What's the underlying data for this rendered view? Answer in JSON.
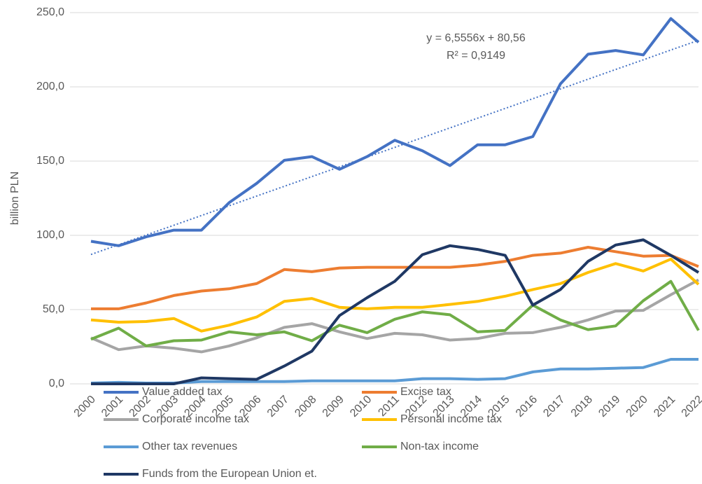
{
  "chart_data": {
    "type": "line",
    "y_label": "billion PLN",
    "categories": [
      "2000",
      "2001",
      "2002",
      "2003",
      "2004",
      "2005",
      "2006",
      "2007",
      "2008",
      "2009",
      "2010",
      "2011",
      "2012",
      "2013",
      "2014",
      "2015",
      "2016",
      "2017",
      "2018",
      "2019",
      "2020",
      "2021",
      "2022"
    ],
    "ylim": [
      0,
      250
    ],
    "yticks": [
      {
        "value": 0,
        "label": "0,0"
      },
      {
        "value": 50,
        "label": "50,0"
      },
      {
        "value": 100,
        "label": "100,0"
      },
      {
        "value": 150,
        "label": "150,0"
      },
      {
        "value": 200,
        "label": "200,0"
      },
      {
        "value": 250,
        "label": "250,0"
      }
    ],
    "grid": true,
    "legend": "bottom",
    "series": [
      {
        "name": "Value added tax",
        "color": "#4472c4",
        "values": [
          96,
          93,
          99,
          103.5,
          103.5,
          122,
          135,
          150.5,
          153,
          144.5,
          153,
          164,
          157,
          147,
          161,
          161,
          166.5,
          202,
          222,
          224.5,
          221.5,
          246,
          230
        ]
      },
      {
        "name": "Excise tax",
        "color": "#ed7d31",
        "values": [
          50.5,
          50.5,
          54.5,
          59.5,
          62.5,
          64,
          67.5,
          77,
          75.5,
          78,
          78.5,
          78.5,
          78.5,
          78.5,
          80,
          82.5,
          86.5,
          88,
          92,
          89,
          86,
          86.5,
          79
        ]
      },
      {
        "name": "Corporate income tax",
        "color": "#a5a5a5",
        "values": [
          31,
          23,
          25.5,
          24,
          21.5,
          25.5,
          31,
          38,
          40.5,
          35,
          30.5,
          34,
          33,
          29.5,
          30.5,
          34,
          34.5,
          38,
          43,
          49,
          49.5,
          60,
          70
        ]
      },
      {
        "name": "Personal income tax",
        "color": "#ffc000",
        "values": [
          43,
          41.5,
          42,
          44,
          35.5,
          39.5,
          45,
          55.5,
          57.5,
          51.5,
          50.5,
          51.5,
          51.5,
          53.5,
          55.5,
          59,
          63.5,
          67.5,
          75,
          81,
          76,
          84,
          67
        ]
      },
      {
        "name": "Other tax revenues",
        "color": "#5b9bd5",
        "values": [
          0.5,
          1,
          0.5,
          0.5,
          1.5,
          1.5,
          1.5,
          1.5,
          2,
          2,
          2,
          2,
          3.5,
          3.5,
          3,
          3.5,
          8,
          10,
          10,
          10.5,
          11,
          16.5,
          16.5
        ]
      },
      {
        "name": "Non-tax income",
        "color": "#70ad47",
        "values": [
          30,
          37.5,
          25.5,
          29,
          29.5,
          35,
          33,
          35,
          29,
          39.5,
          34.5,
          43.5,
          48.5,
          46.5,
          35,
          36,
          53,
          43,
          36.5,
          39,
          56,
          69,
          36
        ]
      },
      {
        "name": "Funds from the European Union et.",
        "color": "#1f3864",
        "values": [
          0,
          0,
          0,
          0,
          4,
          3.5,
          3,
          12,
          22,
          46,
          58,
          69,
          87,
          93,
          90.5,
          86.5,
          53,
          63.5,
          82.5,
          93.5,
          97,
          86.5,
          75
        ]
      }
    ],
    "trendline": {
      "color": "#4472c4",
      "equation": "y = 6,5556x + 80,56",
      "r_squared": "R² = 0,9149",
      "values": [
        87.12,
        93.67,
        100.23,
        106.78,
        113.34,
        119.89,
        126.45,
        133.0,
        139.56,
        146.12,
        152.67,
        159.23,
        165.78,
        172.34,
        178.9,
        185.45,
        192.01,
        198.56,
        205.12,
        211.68,
        218.23,
        224.79,
        231.34
      ]
    }
  }
}
